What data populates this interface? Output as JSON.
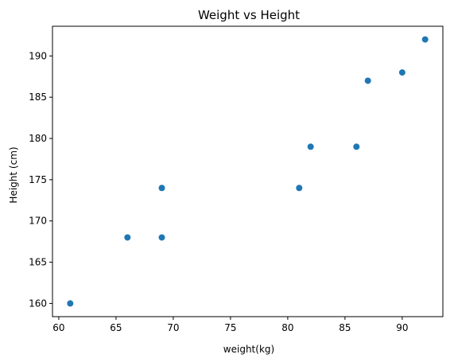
{
  "chart_data": {
    "type": "scatter",
    "title": "Weight vs Height",
    "xlabel": "weight(kg)",
    "ylabel": "Height (cm)",
    "xlim": [
      59.45,
      93.55
    ],
    "ylim": [
      158.4,
      193.6
    ],
    "xticks": [
      60,
      65,
      70,
      75,
      80,
      85,
      90
    ],
    "yticks": [
      160,
      165,
      170,
      175,
      180,
      185,
      190
    ],
    "grid": false,
    "legend": "none",
    "point_color": "#1f77b4",
    "points": [
      {
        "x": 61,
        "y": 160
      },
      {
        "x": 66,
        "y": 168
      },
      {
        "x": 69,
        "y": 168
      },
      {
        "x": 69,
        "y": 174
      },
      {
        "x": 81,
        "y": 174
      },
      {
        "x": 82,
        "y": 179
      },
      {
        "x": 86,
        "y": 179
      },
      {
        "x": 87,
        "y": 187
      },
      {
        "x": 90,
        "y": 188
      },
      {
        "x": 92,
        "y": 192
      }
    ]
  }
}
